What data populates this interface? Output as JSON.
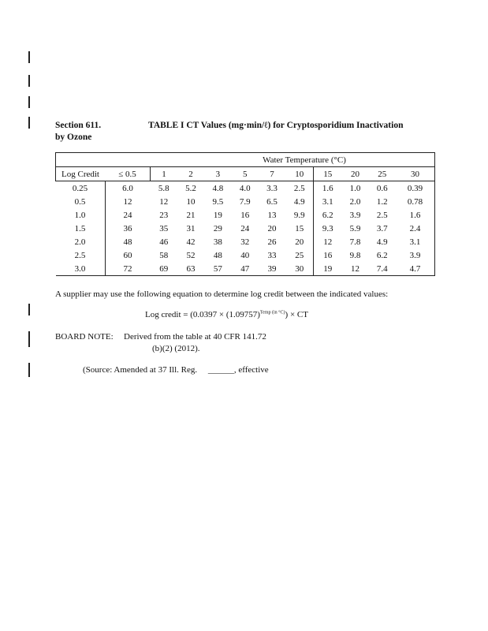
{
  "section": {
    "number": "Section 611.",
    "table_title": "TABLE I   CT Values (mg·min/ℓ) for Cryptosporidium Inactivation",
    "subtitle": "by Ozone"
  },
  "table": {
    "group_header": "Water Temperature (°C)",
    "columns": [
      "Log Credit",
      "≤ 0.5",
      "1",
      "2",
      "3",
      "5",
      "7",
      "10",
      "15",
      "20",
      "25",
      "30"
    ],
    "rows": [
      [
        "0.25",
        "6.0",
        "5.8",
        "5.2",
        "4.8",
        "4.0",
        "3.3",
        "2.5",
        "1.6",
        "1.0",
        "0.6",
        "0.39"
      ],
      [
        "0.5",
        "12",
        "12",
        "10",
        "9.5",
        "7.9",
        "6.5",
        "4.9",
        "3.1",
        "2.0",
        "1.2",
        "0.78"
      ],
      [
        "1.0",
        "24",
        "23",
        "21",
        "19",
        "16",
        "13",
        "9.9",
        "6.2",
        "3.9",
        "2.5",
        "1.6"
      ],
      [
        "1.5",
        "36",
        "35",
        "31",
        "29",
        "24",
        "20",
        "15",
        "9.3",
        "5.9",
        "3.7",
        "2.4"
      ],
      [
        "2.0",
        "48",
        "46",
        "42",
        "38",
        "32",
        "26",
        "20",
        "12",
        "7.8",
        "4.9",
        "3.1"
      ],
      [
        "2.5",
        "60",
        "58",
        "52",
        "48",
        "40",
        "33",
        "25",
        "16",
        "9.8",
        "6.2",
        "3.9"
      ],
      [
        "3.0",
        "72",
        "69",
        "63",
        "57",
        "47",
        "39",
        "30",
        "19",
        "12",
        "7.4",
        "4.7"
      ]
    ]
  },
  "paragraph": "A supplier may use the following equation to determine log credit between the indicated values:",
  "equation": {
    "left": "Log credit = (0.0397 × (1.09757)",
    "exponent": "Temp (in °C)",
    "right": ") × CT"
  },
  "board_note": {
    "label": "BOARD NOTE:",
    "line1": "Derived from the table at 40 CFR 141.72",
    "line2": "(b)(2) (2012)."
  },
  "source": {
    "text": "(Source:  Amended at 37 Ill. Reg.",
    "blank": "______",
    "suffix": ", effective"
  }
}
